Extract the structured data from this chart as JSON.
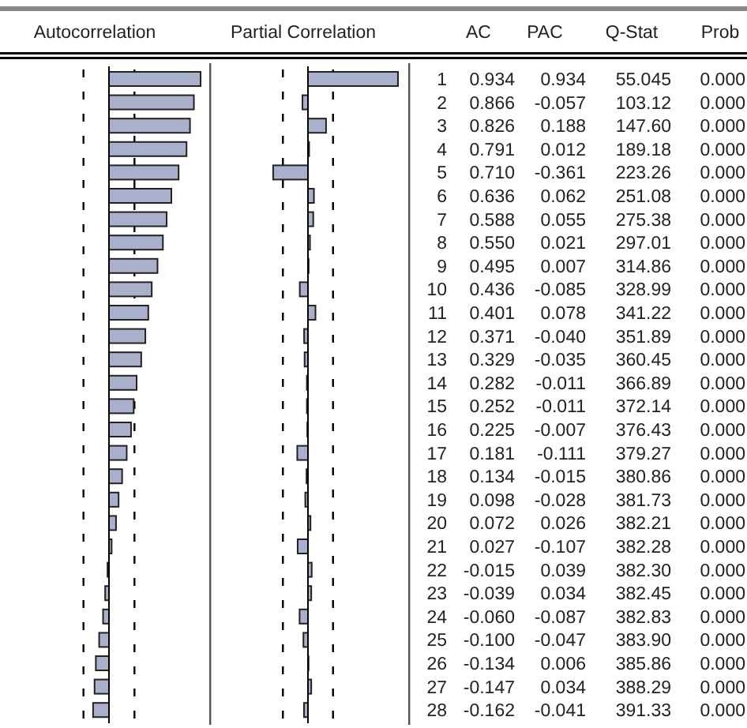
{
  "chart_data": [
    {
      "type": "bar",
      "orientation": "horizontal",
      "title": "Autocorrelation",
      "color": "#a9b0cc",
      "categories": [
        "1",
        "2",
        "3",
        "4",
        "5",
        "6",
        "7",
        "8",
        "9",
        "10",
        "11",
        "12",
        "13",
        "14",
        "15",
        "16",
        "17",
        "18",
        "19",
        "20",
        "21",
        "22",
        "23",
        "24",
        "25",
        "26",
        "27",
        "28"
      ],
      "values": [
        0.934,
        0.866,
        0.826,
        0.791,
        0.71,
        0.636,
        0.588,
        0.55,
        0.495,
        0.436,
        0.401,
        0.371,
        0.329,
        0.282,
        0.252,
        0.225,
        0.181,
        0.134,
        0.098,
        0.072,
        0.027,
        -0.015,
        -0.039,
        -0.06,
        -0.1,
        -0.134,
        -0.147,
        -0.162
      ],
      "value_labels": [
        "0.934",
        "0.866",
        "0.826",
        "0.791",
        "0.710",
        "0.636",
        "0.588",
        "0.550",
        "0.495",
        "0.436",
        "0.401",
        "0.371",
        "0.329",
        "0.282",
        "0.252",
        "0.225",
        "0.181",
        "0.134",
        "0.098",
        "0.072",
        "0.027",
        "-0.015",
        "-0.039",
        "-0.060",
        "-0.100",
        "-0.134",
        "-0.147",
        "-0.162"
      ],
      "ref_lines": [
        {
          "axis": "x",
          "value": -0.26,
          "line_style": "dashed"
        },
        {
          "axis": "x",
          "value": 0.26,
          "line_style": "dashed"
        }
      ]
    },
    {
      "type": "bar",
      "orientation": "horizontal",
      "title": "Partial Correlation",
      "color": "#a9b0cc",
      "categories": [
        null,
        null,
        null,
        null,
        null,
        null,
        null,
        null,
        null,
        null,
        null,
        null,
        null,
        null,
        null,
        null,
        null,
        null,
        null,
        null,
        null,
        null,
        null,
        null,
        null,
        null,
        null,
        null
      ],
      "values": [
        0.934,
        -0.057,
        0.188,
        0.012,
        -0.361,
        0.062,
        0.055,
        0.021,
        0.007,
        -0.085,
        0.078,
        -0.04,
        -0.035,
        -0.011,
        -0.011,
        -0.007,
        -0.111,
        -0.015,
        -0.028,
        0.026,
        -0.107,
        0.039,
        0.034,
        -0.087,
        -0.047,
        0.006,
        0.034,
        -0.041
      ],
      "value_labels": [
        "0.934",
        "-0.057",
        "0.188",
        "0.012",
        "-0.361",
        "0.062",
        "0.055",
        "0.021",
        "0.007",
        "-0.085",
        "0.078",
        "-0.040",
        "-0.035",
        "-0.011",
        "-0.011",
        "-0.007",
        "-0.111",
        "-0.015",
        "-0.028",
        "0.026",
        "-0.107",
        "0.039",
        "0.034",
        "-0.087",
        "-0.047",
        "0.006",
        "0.034",
        "-0.041"
      ],
      "ref_lines": [
        {
          "axis": "x",
          "value": -0.26,
          "line_style": "dashed"
        },
        {
          "axis": "x",
          "value": 0.26,
          "line_style": "dashed"
        }
      ]
    },
    {
      "type": "other",
      "annotations": [
        "AC",
        "PAC",
        "Q-Stat",
        "Prob",
        "55.045",
        "0.000",
        "103.12",
        "0.000",
        "147.60",
        "0.000",
        "189.18",
        "0.000",
        "223.26",
        "0.000",
        "251.08",
        "0.000",
        "275.38",
        "0.000",
        "297.01",
        "0.000",
        "314.86",
        "0.000",
        "328.99",
        "0.000",
        "341.22",
        "0.000",
        "351.89",
        "0.000",
        "360.45",
        "0.000",
        "366.89",
        "0.000",
        "372.14",
        "0.000",
        "376.43",
        "0.000",
        "379.27",
        "0.000",
        "380.86",
        "0.000",
        "381.73",
        "0.000",
        "382.21",
        "0.000",
        "382.28",
        "0.000",
        "382.30",
        "0.000",
        "382.45",
        "0.000",
        "382.83",
        "0.000",
        "383.90",
        "0.000",
        "385.86",
        "0.000",
        "388.29",
        "0.000",
        "391.33",
        "0.000"
      ]
    }
  ]
}
